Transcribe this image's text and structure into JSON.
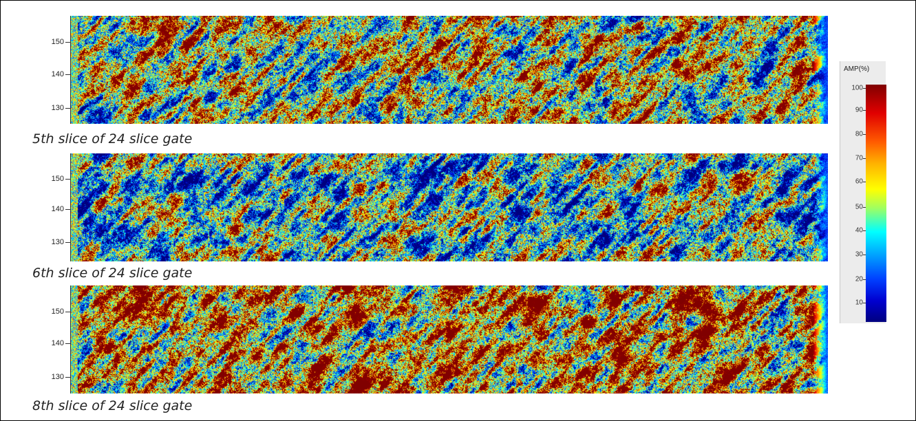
{
  "panels": [
    {
      "caption": "5th slice of 24 slice gate",
      "y_ticks": [
        "150",
        "140",
        "130"
      ]
    },
    {
      "caption": "6th slice of 24 slice gate",
      "y_ticks": [
        "150",
        "140",
        "130"
      ]
    },
    {
      "caption": "8th slice of 24 slice gate",
      "y_ticks": [
        "150",
        "140",
        "130"
      ]
    }
  ],
  "legend": {
    "title": "AMP(%)",
    "ticks": [
      "100",
      "90",
      "80",
      "70",
      "60",
      "50",
      "40",
      "30",
      "20",
      "10"
    ]
  },
  "colors": {
    "scale": [
      "#00007f",
      "#0000d0",
      "#0040ff",
      "#00a0ff",
      "#00ffff",
      "#a0ff60",
      "#ffff00",
      "#ffb000",
      "#ff5a00",
      "#e00000",
      "#800000"
    ]
  }
}
